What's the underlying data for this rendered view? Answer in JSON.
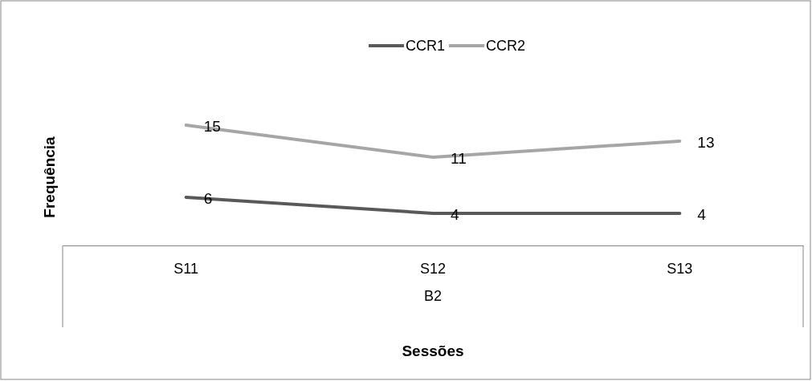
{
  "chart_data": {
    "type": "line",
    "xlabel": "Sessões",
    "ylabel": "Frequência",
    "categories": [
      "S11",
      "S12",
      "S13"
    ],
    "series": [
      {
        "name": "CCR1",
        "color": "#595959",
        "values": [
          6,
          4,
          4
        ]
      },
      {
        "name": "CCR2",
        "color": "#a6a6a6",
        "values": [
          15,
          11,
          13
        ]
      }
    ],
    "tick_labels": "x",
    "data_labels": true,
    "legend": "top",
    "marker": "none",
    "line_style": "solid",
    "annotations": [
      "B2"
    ]
  }
}
